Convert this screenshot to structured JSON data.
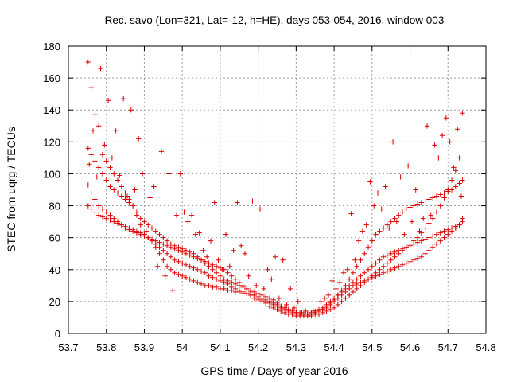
{
  "chart_data": {
    "type": "scatter",
    "title": "Rec. savo (Lon=321, Lat=-12, h=HE), days 053-054, 2016, window 003",
    "xlabel": "GPS time / Days of year 2016",
    "ylabel": "STEC from uqrg / TECUs",
    "xlim": [
      53.7,
      54.8
    ],
    "ylim": [
      0,
      180
    ],
    "xticks": [
      "53.7",
      "53.8",
      "53.9",
      "54",
      "54.1",
      "54.2",
      "54.3",
      "54.4",
      "54.5",
      "54.6",
      "54.7",
      "54.8"
    ],
    "yticks": [
      "0",
      "20",
      "40",
      "60",
      "80",
      "100",
      "120",
      "140",
      "160",
      "180"
    ],
    "grid": true,
    "legend": "none",
    "marker": "+",
    "color": "#dd0000",
    "series": [
      {
        "x": [
          53.752,
          53.76,
          53.77,
          53.78,
          53.79,
          53.8,
          53.81,
          53.82,
          53.83,
          53.84,
          53.85,
          53.86,
          53.87,
          53.88,
          53.89,
          53.9,
          53.91,
          53.92,
          53.93,
          53.94,
          53.95,
          53.96,
          53.97,
          53.98,
          53.99,
          54.0,
          54.01,
          54.02,
          54.03,
          54.04,
          54.05,
          54.06,
          54.07,
          54.08,
          54.09,
          54.1,
          54.11,
          54.12,
          54.13,
          54.14,
          54.15,
          54.16,
          54.17,
          54.18,
          54.19,
          54.2,
          54.21,
          54.22,
          54.23,
          54.24,
          54.25,
          54.26,
          54.27,
          54.28,
          54.29,
          54.3,
          54.31,
          54.32,
          54.33,
          54.34,
          54.35,
          54.36,
          54.37,
          54.38,
          54.39,
          54.4,
          54.41,
          54.42,
          54.43,
          54.44,
          54.45,
          54.46,
          54.47,
          54.48,
          54.49,
          54.5,
          54.51,
          54.52,
          54.53,
          54.54,
          54.55,
          54.56,
          54.57,
          54.58,
          54.59,
          54.6,
          54.61,
          54.62,
          54.63,
          54.64,
          54.65,
          54.66,
          54.67,
          54.68,
          54.69,
          54.7,
          54.71,
          54.72,
          54.73,
          54.738
        ],
        "y": [
          170,
          154,
          137,
          130,
          112,
          108,
          104,
          100,
          96,
          92,
          88,
          84,
          80,
          74,
          68,
          62,
          60,
          58,
          56,
          54,
          52,
          50,
          48,
          46,
          45,
          44,
          43,
          42,
          41,
          40,
          39,
          38,
          36,
          35,
          34,
          33,
          32,
          31,
          29,
          28,
          27,
          26,
          25,
          24,
          22,
          21,
          20,
          19,
          17,
          16,
          15,
          14,
          13,
          12,
          12,
          11,
          11,
          11,
          11,
          11,
          12,
          12,
          13,
          14,
          15,
          16,
          18,
          20,
          22,
          24,
          26,
          28,
          30,
          32,
          34,
          36,
          38,
          40,
          42,
          44,
          46,
          48,
          50,
          52,
          54,
          56,
          58,
          60,
          63,
          66,
          69,
          72,
          76,
          80,
          85,
          90,
          96,
          102,
          110,
          138
        ]
      },
      {
        "x": [
          53.752,
          53.76,
          53.77,
          53.78,
          53.79,
          53.8,
          53.81,
          53.82,
          53.83,
          53.84,
          53.85,
          53.86,
          53.87,
          53.88,
          53.89,
          53.9,
          53.91,
          53.92,
          53.93,
          53.94,
          53.95,
          53.96,
          53.97,
          53.98,
          53.99,
          54.0,
          54.01,
          54.02,
          54.03,
          54.04,
          54.05,
          54.06,
          54.07,
          54.08,
          54.09,
          54.1,
          54.11,
          54.12,
          54.13,
          54.14,
          54.15,
          54.16,
          54.17,
          54.18,
          54.19,
          54.2,
          54.21,
          54.22,
          54.23,
          54.24,
          54.25,
          54.26,
          54.27,
          54.28,
          54.29,
          54.3,
          54.31,
          54.32,
          54.33,
          54.34,
          54.35,
          54.36,
          54.37,
          54.38,
          54.39,
          54.4,
          54.41,
          54.42,
          54.43,
          54.44,
          54.45,
          54.46,
          54.47,
          54.48,
          54.49,
          54.5,
          54.51,
          54.52,
          54.53,
          54.54,
          54.55,
          54.56,
          54.57,
          54.58,
          54.59,
          54.6,
          54.61,
          54.62,
          54.63,
          54.64,
          54.65,
          54.66,
          54.67,
          54.68,
          54.69,
          54.7,
          54.71,
          54.72,
          54.73,
          54.738
        ],
        "y": [
          116,
          112,
          108,
          104,
          100,
          96,
          92,
          90,
          88,
          86,
          84,
          82,
          80,
          76,
          72,
          70,
          68,
          66,
          64,
          62,
          60,
          58,
          56,
          55,
          54,
          53,
          52,
          51,
          50,
          48,
          46,
          44,
          42,
          40,
          38,
          36,
          34,
          33,
          32,
          31,
          30,
          29,
          28,
          27,
          26,
          25,
          24,
          23,
          22,
          21,
          19,
          17,
          16,
          15,
          14,
          13,
          13,
          12,
          12,
          12,
          13,
          14,
          15,
          17,
          19,
          21,
          24,
          27,
          30,
          34,
          38,
          42,
          46,
          50,
          54,
          58,
          62,
          64,
          66,
          68,
          70,
          72,
          74,
          76,
          78,
          79,
          80,
          81,
          82,
          83,
          84,
          85,
          86,
          87,
          88,
          89,
          90,
          92,
          94,
          96
        ]
      },
      {
        "x": [
          53.752,
          53.76,
          53.77,
          53.78,
          53.79,
          53.8,
          53.81,
          53.82,
          53.83,
          53.84,
          53.85,
          53.86,
          53.87,
          53.88,
          53.89,
          53.9,
          53.91,
          53.92,
          53.93,
          53.94,
          53.95,
          53.96,
          53.97,
          53.98,
          53.99,
          54.0,
          54.01,
          54.02,
          54.03,
          54.04,
          54.05,
          54.06,
          54.07,
          54.08,
          54.09,
          54.1,
          54.11,
          54.12,
          54.13,
          54.14,
          54.15,
          54.16,
          54.17,
          54.18,
          54.19,
          54.2,
          54.21,
          54.22,
          54.23,
          54.24,
          54.25,
          54.26,
          54.27,
          54.28,
          54.29,
          54.3,
          54.31,
          54.32,
          54.33,
          54.34,
          54.35,
          54.36,
          54.37,
          54.38,
          54.39,
          54.4,
          54.41,
          54.42,
          54.43,
          54.44,
          54.45,
          54.46,
          54.47,
          54.48,
          54.49,
          54.5,
          54.51,
          54.52,
          54.53,
          54.54,
          54.55,
          54.56,
          54.57,
          54.58,
          54.59,
          54.6,
          54.61,
          54.62,
          54.63,
          54.64,
          54.65,
          54.66,
          54.67,
          54.68,
          54.69,
          54.7,
          54.71,
          54.72,
          54.73,
          54.738
        ],
        "y": [
          93,
          88,
          84,
          80,
          78,
          76,
          74,
          72,
          70,
          68,
          66,
          65,
          64,
          63,
          62,
          61,
          60,
          59,
          58,
          57,
          56,
          55,
          54,
          53,
          52,
          51,
          50,
          49,
          48,
          47,
          46,
          45,
          44,
          43,
          42,
          41,
          40,
          38,
          36,
          34,
          32,
          30,
          28,
          26,
          24,
          22,
          21,
          20,
          19,
          18,
          17,
          16,
          15,
          14,
          13,
          13,
          12,
          12,
          12,
          13,
          14,
          15,
          16,
          18,
          20,
          22,
          24,
          26,
          28,
          30,
          32,
          34,
          36,
          38,
          40,
          42,
          44,
          46,
          48,
          49,
          50,
          51,
          52,
          53,
          54,
          55,
          56,
          57,
          58,
          59,
          60,
          61,
          62,
          63,
          64,
          65,
          66,
          67,
          68,
          70
        ]
      },
      {
        "x": [
          53.752,
          53.76,
          53.77,
          53.78,
          53.79,
          53.8,
          53.81,
          53.82,
          53.83,
          53.84,
          53.85,
          53.86,
          53.87,
          53.88,
          53.89,
          53.9,
          53.91,
          53.92,
          53.93,
          53.94,
          53.95,
          53.96,
          53.97,
          53.98,
          53.99,
          54.0,
          54.01,
          54.02,
          54.03,
          54.04,
          54.05,
          54.06,
          54.07,
          54.08,
          54.09,
          54.1,
          54.11,
          54.12,
          54.13,
          54.14,
          54.15,
          54.16,
          54.17,
          54.18,
          54.19,
          54.2,
          54.21,
          54.22,
          54.23,
          54.24,
          54.25,
          54.26,
          54.27,
          54.28,
          54.29,
          54.3,
          54.31,
          54.32,
          54.33,
          54.34,
          54.35,
          54.36,
          54.37,
          54.38,
          54.39,
          54.4,
          54.41,
          54.42,
          54.43,
          54.44,
          54.45,
          54.46,
          54.47,
          54.48,
          54.49,
          54.5,
          54.51,
          54.52,
          54.53,
          54.54,
          54.55,
          54.56,
          54.57,
          54.58,
          54.59,
          54.6,
          54.61,
          54.62,
          54.63,
          54.64,
          54.65,
          54.66,
          54.67,
          54.68,
          54.69,
          54.7,
          54.71,
          54.72,
          54.73,
          54.738
        ],
        "y": [
          80,
          78,
          76,
          74,
          73,
          72,
          71,
          70,
          69,
          68,
          67,
          66,
          65,
          64,
          63,
          62,
          60,
          58,
          54,
          50,
          46,
          42,
          40,
          38,
          37,
          36,
          35,
          34,
          33,
          32,
          31,
          30,
          30,
          29,
          29,
          28,
          28,
          27,
          27,
          26,
          26,
          25,
          25,
          24,
          24,
          23,
          22,
          21,
          20,
          19,
          18,
          17,
          16,
          15,
          14,
          13,
          12,
          12,
          12,
          12,
          13,
          14,
          15,
          16,
          18,
          20,
          22,
          24,
          26,
          28,
          30,
          31,
          32,
          33,
          34,
          35,
          36,
          37,
          38,
          39,
          40,
          41,
          42,
          43,
          44,
          45,
          46,
          47,
          48,
          50,
          52,
          54,
          56,
          58,
          60,
          62,
          64,
          66,
          68,
          72
        ]
      },
      {
        "x": [
          53.755,
          53.765,
          53.775,
          53.785,
          53.795,
          53.805,
          53.815,
          53.825,
          53.835,
          53.845,
          53.855,
          53.865,
          53.875,
          53.885,
          53.895,
          53.905,
          53.915,
          53.925,
          53.935,
          53.945,
          53.955,
          53.965,
          53.975,
          53.985,
          53.995,
          54.005,
          54.015,
          54.025,
          54.035,
          54.045,
          54.055,
          54.065,
          54.075,
          54.085,
          54.095,
          54.105,
          54.115,
          54.125,
          54.135,
          54.145,
          54.155,
          54.165,
          54.175,
          54.185,
          54.195,
          54.205,
          54.215,
          54.225,
          54.235,
          54.245,
          54.255,
          54.265,
          54.275,
          54.285,
          54.295,
          54.305,
          54.315,
          54.325,
          54.335,
          54.345,
          54.355,
          54.365,
          54.375,
          54.385,
          54.395,
          54.405,
          54.415,
          54.425,
          54.435,
          54.445,
          54.455,
          54.465,
          54.475,
          54.485,
          54.495,
          54.505,
          54.515,
          54.525,
          54.535,
          54.545,
          54.555,
          54.565,
          54.575,
          54.585,
          54.595,
          54.605,
          54.615,
          54.625,
          54.635,
          54.645,
          54.655,
          54.665,
          54.675,
          54.685,
          54.695,
          54.705,
          54.715,
          54.725,
          54.735
        ],
        "y": [
          106,
          127,
          98,
          166,
          118,
          146,
          110,
          127,
          99,
          147,
          86,
          140,
          90,
          122,
          100,
          64,
          85,
          92,
          42,
          114,
          36,
          100,
          27,
          74,
          100,
          76,
          70,
          74,
          62,
          63,
          52,
          48,
          58,
          82,
          46,
          40,
          62,
          42,
          52,
          82,
          55,
          50,
          36,
          83,
          30,
          78,
          28,
          40,
          34,
          48,
          22,
          46,
          18,
          28,
          16,
          20,
          13,
          14,
          12,
          14,
          14,
          20,
          22,
          24,
          33,
          28,
          32,
          38,
          40,
          75,
          46,
          58,
          64,
          68,
          95,
          80,
          88,
          78,
          92,
          66,
          120,
          70,
          98,
          62,
          105,
          70,
          90,
          64,
          72,
          130,
          74,
          118,
          110,
          124,
          135,
          120,
          104,
          128,
          86
        ]
      }
    ]
  }
}
